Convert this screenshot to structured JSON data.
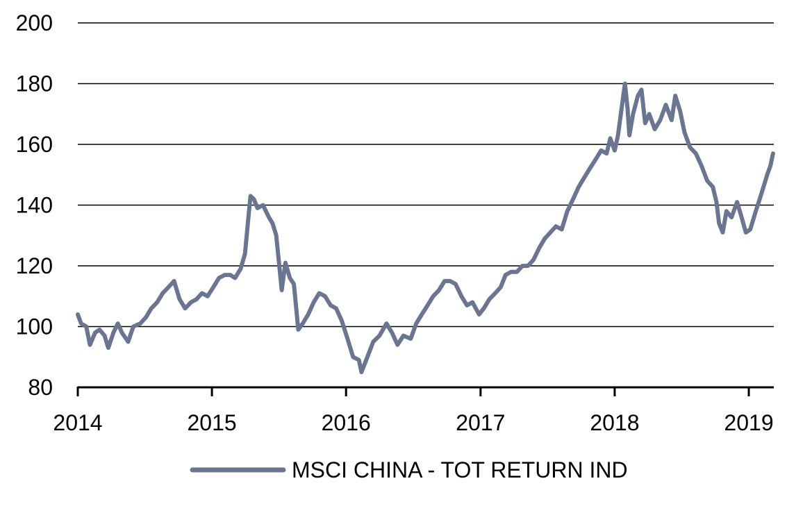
{
  "chart_data": {
    "type": "line",
    "title": "",
    "xlabel": "",
    "ylabel": "",
    "x_ticks": [
      "2014",
      "2015",
      "2016",
      "2017",
      "2018",
      "2019"
    ],
    "y_ticks": [
      "200",
      "180",
      "160",
      "140",
      "120",
      "100",
      "80"
    ],
    "xlim": [
      "2014-01-01",
      "2019-03-10"
    ],
    "ylim": [
      80,
      200
    ],
    "grid": "horizontal",
    "legend_position": "bottom-center",
    "series": [
      {
        "name": "MSCI CHINA - TOT RETURN IND",
        "color": "#6a7591",
        "points": [
          [
            "2014-01-01",
            104
          ],
          [
            "2014-01-10",
            101
          ],
          [
            "2014-01-24",
            100
          ],
          [
            "2014-02-03",
            94
          ],
          [
            "2014-02-17",
            98
          ],
          [
            "2014-03-01",
            99
          ],
          [
            "2014-03-15",
            97
          ],
          [
            "2014-03-25",
            93
          ],
          [
            "2014-04-08",
            98
          ],
          [
            "2014-04-20",
            101
          ],
          [
            "2014-05-01",
            98
          ],
          [
            "2014-05-18",
            95
          ],
          [
            "2014-06-01",
            100
          ],
          [
            "2014-06-20",
            101
          ],
          [
            "2014-07-05",
            103
          ],
          [
            "2014-07-20",
            106
          ],
          [
            "2014-08-05",
            108
          ],
          [
            "2014-08-20",
            111
          ],
          [
            "2014-09-05",
            113
          ],
          [
            "2014-09-20",
            115
          ],
          [
            "2014-10-05",
            109
          ],
          [
            "2014-10-20",
            106
          ],
          [
            "2014-11-05",
            108
          ],
          [
            "2014-11-20",
            109
          ],
          [
            "2014-12-05",
            111
          ],
          [
            "2014-12-20",
            110
          ],
          [
            "2015-01-05",
            113
          ],
          [
            "2015-01-20",
            116
          ],
          [
            "2015-02-05",
            117
          ],
          [
            "2015-02-20",
            117
          ],
          [
            "2015-03-05",
            116
          ],
          [
            "2015-03-20",
            119
          ],
          [
            "2015-04-01",
            124
          ],
          [
            "2015-04-08",
            133
          ],
          [
            "2015-04-16",
            143
          ],
          [
            "2015-04-25",
            142
          ],
          [
            "2015-05-05",
            139
          ],
          [
            "2015-05-20",
            140
          ],
          [
            "2015-06-05",
            136
          ],
          [
            "2015-06-15",
            134
          ],
          [
            "2015-06-25",
            130
          ],
          [
            "2015-07-05",
            118
          ],
          [
            "2015-07-10",
            112
          ],
          [
            "2015-07-20",
            121
          ],
          [
            "2015-08-01",
            116
          ],
          [
            "2015-08-12",
            114
          ],
          [
            "2015-08-24",
            99
          ],
          [
            "2015-09-05",
            101
          ],
          [
            "2015-09-20",
            104
          ],
          [
            "2015-10-05",
            108
          ],
          [
            "2015-10-20",
            111
          ],
          [
            "2015-11-05",
            110
          ],
          [
            "2015-11-20",
            107
          ],
          [
            "2015-12-05",
            106
          ],
          [
            "2015-12-20",
            102
          ],
          [
            "2016-01-05",
            96
          ],
          [
            "2016-01-20",
            90
          ],
          [
            "2016-02-05",
            89
          ],
          [
            "2016-02-12",
            85
          ],
          [
            "2016-02-28",
            90
          ],
          [
            "2016-03-15",
            95
          ],
          [
            "2016-04-01",
            97
          ],
          [
            "2016-04-20",
            101
          ],
          [
            "2016-05-05",
            98
          ],
          [
            "2016-05-20",
            94
          ],
          [
            "2016-06-05",
            97
          ],
          [
            "2016-06-25",
            96
          ],
          [
            "2016-07-10",
            101
          ],
          [
            "2016-07-25",
            104
          ],
          [
            "2016-08-10",
            107
          ],
          [
            "2016-08-25",
            110
          ],
          [
            "2016-09-10",
            112
          ],
          [
            "2016-09-25",
            115
          ],
          [
            "2016-10-10",
            115
          ],
          [
            "2016-10-25",
            114
          ],
          [
            "2016-11-10",
            110
          ],
          [
            "2016-11-25",
            107
          ],
          [
            "2016-12-10",
            108
          ],
          [
            "2016-12-28",
            104
          ],
          [
            "2017-01-10",
            106
          ],
          [
            "2017-01-25",
            109
          ],
          [
            "2017-02-10",
            111
          ],
          [
            "2017-02-25",
            113
          ],
          [
            "2017-03-10",
            117
          ],
          [
            "2017-03-25",
            118
          ],
          [
            "2017-04-10",
            118
          ],
          [
            "2017-04-25",
            120
          ],
          [
            "2017-05-10",
            120
          ],
          [
            "2017-05-25",
            122
          ],
          [
            "2017-06-10",
            126
          ],
          [
            "2017-06-25",
            129
          ],
          [
            "2017-07-10",
            131
          ],
          [
            "2017-07-25",
            133
          ],
          [
            "2017-08-10",
            132
          ],
          [
            "2017-08-25",
            138
          ],
          [
            "2017-09-10",
            142
          ],
          [
            "2017-09-25",
            146
          ],
          [
            "2017-10-10",
            149
          ],
          [
            "2017-10-25",
            152
          ],
          [
            "2017-11-10",
            155
          ],
          [
            "2017-11-25",
            158
          ],
          [
            "2017-12-10",
            157
          ],
          [
            "2017-12-20",
            162
          ],
          [
            "2018-01-01",
            158
          ],
          [
            "2018-01-10",
            163
          ],
          [
            "2018-01-20",
            172
          ],
          [
            "2018-01-29",
            180
          ],
          [
            "2018-02-05",
            172
          ],
          [
            "2018-02-10",
            163
          ],
          [
            "2018-02-20",
            170
          ],
          [
            "2018-03-05",
            176
          ],
          [
            "2018-03-15",
            178
          ],
          [
            "2018-03-25",
            167
          ],
          [
            "2018-04-05",
            170
          ],
          [
            "2018-04-20",
            165
          ],
          [
            "2018-05-05",
            168
          ],
          [
            "2018-05-20",
            173
          ],
          [
            "2018-06-05",
            168
          ],
          [
            "2018-06-15",
            176
          ],
          [
            "2018-06-28",
            171
          ],
          [
            "2018-07-10",
            164
          ],
          [
            "2018-07-25",
            159
          ],
          [
            "2018-08-10",
            157
          ],
          [
            "2018-08-25",
            153
          ],
          [
            "2018-09-10",
            148
          ],
          [
            "2018-09-25",
            146
          ],
          [
            "2018-10-05",
            141
          ],
          [
            "2018-10-12",
            134
          ],
          [
            "2018-10-22",
            131
          ],
          [
            "2018-11-01",
            138
          ],
          [
            "2018-11-15",
            136
          ],
          [
            "2018-11-30",
            141
          ],
          [
            "2018-12-10",
            137
          ],
          [
            "2018-12-24",
            131
          ],
          [
            "2019-01-05",
            132
          ],
          [
            "2019-01-20",
            138
          ],
          [
            "2019-02-05",
            144
          ],
          [
            "2019-02-20",
            150
          ],
          [
            "2019-03-01",
            153
          ],
          [
            "2019-03-08",
            157
          ]
        ]
      }
    ]
  }
}
